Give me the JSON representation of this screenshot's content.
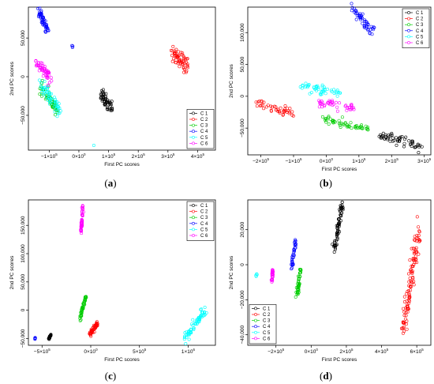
{
  "panels": [
    {
      "label_open": "(",
      "label_letter": "a",
      "label_close": ")"
    },
    {
      "label_open": "(",
      "label_letter": "b",
      "label_close": ")"
    },
    {
      "label_open": "(",
      "label_letter": "c",
      "label_close": ")"
    },
    {
      "label_open": "(",
      "label_letter": "d",
      "label_close": ")"
    }
  ],
  "chart_data": [
    {
      "type": "scatter",
      "xlabel": "First PC scores",
      "ylabel": "2nd PC scores",
      "xlim": [
        -170000,
        460000
      ],
      "ylim": [
        -95000,
        90000
      ],
      "x_ticks": [
        {
          "v": -100000,
          "base": "−1×10",
          "exp": "5"
        },
        {
          "v": 0,
          "base": "0×10",
          "exp": "0"
        },
        {
          "v": 100000,
          "base": "1×10",
          "exp": "5"
        },
        {
          "v": 200000,
          "base": "2×10",
          "exp": "5"
        },
        {
          "v": 300000,
          "base": "3×10",
          "exp": "5"
        },
        {
          "v": 400000,
          "base": "4×10",
          "exp": "5"
        }
      ],
      "y_ticks": [
        {
          "v": -50000,
          "label": "−50,000"
        },
        {
          "v": 0,
          "label": "0"
        },
        {
          "v": 50000,
          "label": "50,000"
        }
      ],
      "legend": "bottom-right",
      "series": [
        {
          "name": "C 1",
          "color": "#000000",
          "clusters": [
            {
              "cx": 90000,
              "cy": -30000,
              "dx": 40000,
              "dy": -22000,
              "w": 7000,
              "n": 55
            }
          ]
        },
        {
          "name": "C 2",
          "color": "#ff0000",
          "clusters": [
            {
              "cx": 340000,
              "cy": 22000,
              "dx": 55000,
              "dy": -24000,
              "w": 9000,
              "n": 60
            }
          ]
        },
        {
          "name": "C 3",
          "color": "#00cc00",
          "clusters": [
            {
              "cx": -100000,
              "cy": -28000,
              "dx": 55000,
              "dy": -30000,
              "w": 6000,
              "n": 50
            }
          ]
        },
        {
          "name": "C 4",
          "color": "#0000ff",
          "clusters": [
            {
              "cx": -120000,
              "cy": 72000,
              "dx": 30000,
              "dy": -25000,
              "w": 5000,
              "n": 50
            },
            {
              "cx": -20000,
              "cy": 37000,
              "dx": 10000,
              "dy": -8000,
              "w": 3000,
              "n": 3
            }
          ]
        },
        {
          "name": "C 5",
          "color": "#00ffff",
          "clusters": [
            {
              "cx": -95000,
              "cy": -27000,
              "dx": 65000,
              "dy": -38000,
              "w": 6000,
              "n": 55
            },
            {
              "cx": 50000,
              "cy": -88000,
              "dx": 0,
              "dy": 0,
              "w": 1000,
              "n": 1
            }
          ]
        },
        {
          "name": "C 6",
          "color": "#ff00ff",
          "clusters": [
            {
              "cx": -120000,
              "cy": 8000,
              "dx": 50000,
              "dy": -20000,
              "w": 6000,
              "n": 50
            }
          ]
        }
      ]
    },
    {
      "type": "scatter",
      "xlabel": "First PC scores",
      "ylabel": "2nd PC scores",
      "xlim": [
        -240000,
        320000
      ],
      "ylim": [
        -92000,
        140000
      ],
      "x_ticks": [
        {
          "v": -200000,
          "base": "−2×10",
          "exp": "5"
        },
        {
          "v": -100000,
          "base": "−1×10",
          "exp": "5"
        },
        {
          "v": 0,
          "base": "0×10",
          "exp": "0"
        },
        {
          "v": 100000,
          "base": "1×10",
          "exp": "5"
        },
        {
          "v": 200000,
          "base": "2×10",
          "exp": "5"
        },
        {
          "v": 300000,
          "base": "3×10",
          "exp": "5"
        }
      ],
      "y_ticks": [
        {
          "v": -50000,
          "label": "−50,000"
        },
        {
          "v": 0,
          "label": "0"
        },
        {
          "v": 50000,
          "label": "50,000"
        },
        {
          "v": 100000,
          "label": "100,000"
        }
      ],
      "legend": "top-right",
      "series": [
        {
          "name": "C 1",
          "color": "#000000",
          "clusters": [
            {
              "cx": 230000,
              "cy": -70000,
              "dx": 130000,
              "dy": -18000,
              "w": 4000,
              "n": 55
            }
          ]
        },
        {
          "name": "C 2",
          "color": "#ff0000",
          "clusters": [
            {
              "cx": -160000,
              "cy": -18000,
              "dx": 115000,
              "dy": -16000,
              "w": 3500,
              "n": 45
            }
          ]
        },
        {
          "name": "C 3",
          "color": "#00cc00",
          "clusters": [
            {
              "cx": 60000,
              "cy": -44000,
              "dx": 140000,
              "dy": -16000,
              "w": 3500,
              "n": 55
            }
          ]
        },
        {
          "name": "C 4",
          "color": "#0000ff",
          "clusters": [
            {
              "cx": 110000,
              "cy": 120000,
              "dx": 70000,
              "dy": -40000,
              "w": 5000,
              "n": 50
            }
          ]
        },
        {
          "name": "C 5",
          "color": "#00ffff",
          "clusters": [
            {
              "cx": -20000,
              "cy": 12000,
              "dx": 120000,
              "dy": -12000,
              "w": 3500,
              "n": 50
            }
          ]
        },
        {
          "name": "C 6",
          "color": "#ff00ff",
          "clusters": [
            {
              "cx": 30000,
              "cy": -14000,
              "dx": 110000,
              "dy": -8000,
              "w": 3500,
              "n": 45
            }
          ]
        }
      ]
    },
    {
      "type": "scatter",
      "xlabel": "First PC scores",
      "ylabel": "2nd PC scores",
      "xlim": [
        -640000,
        1280000
      ],
      "ylim": [
        -62000,
        195000
      ],
      "x_ticks": [
        {
          "v": -500000,
          "base": "−5×10",
          "exp": "5"
        },
        {
          "v": 0,
          "base": "0×10",
          "exp": "0"
        },
        {
          "v": 500000,
          "base": "5×10",
          "exp": "5"
        },
        {
          "v": 1000000,
          "base": "1×10",
          "exp": "6"
        }
      ],
      "y_ticks": [
        {
          "v": -50000,
          "label": "−50,000"
        },
        {
          "v": 0,
          "label": "0"
        },
        {
          "v": 50000,
          "label": "50,000"
        },
        {
          "v": 100000,
          "label": "100,000"
        },
        {
          "v": 150000,
          "label": "150,000"
        }
      ],
      "legend": "top-right",
      "series": [
        {
          "name": "C 1",
          "color": "#000000",
          "clusters": [
            {
              "cx": -420000,
              "cy": -47000,
              "dx": 20000,
              "dy": 8000,
              "w": 3000,
              "n": 25
            }
          ]
        },
        {
          "name": "C 2",
          "color": "#ff0000",
          "clusters": [
            {
              "cx": 30000,
              "cy": -33000,
              "dx": 80000,
              "dy": 20000,
              "w": 8000,
              "n": 50
            }
          ]
        },
        {
          "name": "C 3",
          "color": "#00cc00",
          "clusters": [
            {
              "cx": -80000,
              "cy": 5000,
              "dx": 60000,
              "dy": 40000,
              "w": 7000,
              "n": 50
            }
          ]
        },
        {
          "name": "C 4",
          "color": "#0000ff",
          "clusters": [
            {
              "cx": -570000,
              "cy": -50000,
              "dx": 5000,
              "dy": 3000,
              "w": 1500,
              "n": 5
            }
          ]
        },
        {
          "name": "C 5",
          "color": "#00ffff",
          "clusters": [
            {
              "cx": 1070000,
              "cy": -25000,
              "dx": 200000,
              "dy": 50000,
              "w": 15000,
              "n": 70
            }
          ]
        },
        {
          "name": "C 6",
          "color": "#ff00ff",
          "clusters": [
            {
              "cx": -90000,
              "cy": 160000,
              "dx": 20000,
              "dy": 45000,
              "w": 7000,
              "n": 45
            }
          ]
        }
      ]
    },
    {
      "type": "scatter",
      "xlabel": "First PC scores",
      "ylabel": "2nd PC scores",
      "xlim": [
        -360000,
        680000
      ],
      "ylim": [
        -46000,
        37000
      ],
      "x_ticks": [
        {
          "v": -200000,
          "base": "−2×10",
          "exp": "5"
        },
        {
          "v": 0,
          "base": "0×10",
          "exp": "0"
        },
        {
          "v": 200000,
          "base": "2×10",
          "exp": "5"
        },
        {
          "v": 400000,
          "base": "4×10",
          "exp": "5"
        },
        {
          "v": 600000,
          "base": "6×10",
          "exp": "5"
        }
      ],
      "y_ticks": [
        {
          "v": -40000,
          "label": "−40,000"
        },
        {
          "v": -20000,
          "label": "−20,000"
        },
        {
          "v": 0,
          "label": "0"
        },
        {
          "v": 20000,
          "label": "20,000"
        }
      ],
      "legend": "bottom-left",
      "series": [
        {
          "name": "C 1",
          "color": "#000000",
          "clusters": [
            {
              "cx": 155000,
              "cy": 22000,
              "dx": 40000,
              "dy": 25000,
              "w": 8000,
              "n": 70
            }
          ]
        },
        {
          "name": "C 2",
          "color": "#ff0000",
          "clusters": [
            {
              "cx": 570000,
              "cy": -8000,
              "dx": 90000,
              "dy": 60000,
              "w": 15000,
              "n": 110
            }
          ]
        },
        {
          "name": "C 3",
          "color": "#00cc00",
          "clusters": [
            {
              "cx": -70000,
              "cy": -10000,
              "dx": 20000,
              "dy": 15000,
              "w": 6000,
              "n": 45
            }
          ]
        },
        {
          "name": "C 4",
          "color": "#0000ff",
          "clusters": [
            {
              "cx": -100000,
              "cy": 6000,
              "dx": 20000,
              "dy": 15000,
              "w": 5000,
              "n": 35
            }
          ]
        },
        {
          "name": "C 5",
          "color": "#00ffff",
          "clusters": [
            {
              "cx": -310000,
              "cy": -6000,
              "dx": 6000,
              "dy": 2000,
              "w": 2000,
              "n": 4
            }
          ]
        },
        {
          "name": "C 6",
          "color": "#ff00ff",
          "clusters": [
            {
              "cx": -220000,
              "cy": -6500,
              "dx": 8000,
              "dy": 7000,
              "w": 3000,
              "n": 25
            }
          ]
        }
      ]
    }
  ]
}
